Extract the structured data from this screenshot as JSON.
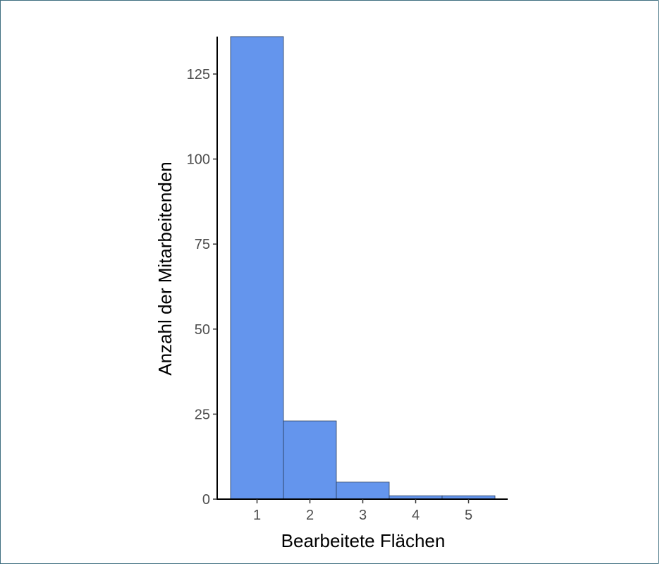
{
  "chart_data": {
    "type": "bar",
    "categories": [
      "1",
      "2",
      "3",
      "4",
      "5"
    ],
    "values": [
      136,
      23,
      5,
      1,
      1
    ],
    "xlabel": "Bearbeitete Flächen",
    "ylabel": "Anzahl der Mitarbeitenden",
    "ylim": [
      0,
      136
    ],
    "y_ticks": [
      0,
      25,
      50,
      75,
      100,
      125
    ],
    "x_ticks": [
      "1",
      "2",
      "3",
      "4",
      "5"
    ],
    "grid": false,
    "bar_color": "#6495ed",
    "bar_edge_color": "#2a3d5a",
    "axis_color": "#000000"
  }
}
